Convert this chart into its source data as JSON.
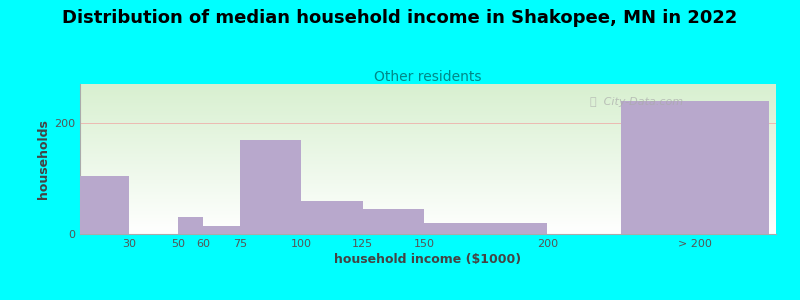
{
  "title": "Distribution of median household income in Shakopee, MN in 2022",
  "subtitle": "Other residents",
  "xlabel": "household income ($1000)",
  "ylabel": "households",
  "bar_color": "#b8a8cc",
  "background_color": "#00ffff",
  "ylim": [
    0,
    270
  ],
  "yticks": [
    0,
    200
  ],
  "xtick_vals": [
    30,
    50,
    60,
    75,
    100,
    125,
    150,
    200,
    260
  ],
  "xtick_labels": [
    "30",
    "50",
    "60",
    "75",
    "100",
    "125",
    "150",
    "200",
    "> 200"
  ],
  "bar_lefts": [
    10,
    30,
    50,
    60,
    75,
    100,
    125,
    150,
    230
  ],
  "bar_widths": [
    20,
    0,
    10,
    15,
    25,
    25,
    25,
    50,
    60
  ],
  "bar_heights": [
    105,
    0,
    30,
    15,
    170,
    60,
    45,
    20,
    240
  ],
  "xlim": [
    10,
    293
  ],
  "watermark": "City-Data.com",
  "title_fontsize": 13,
  "subtitle_fontsize": 10,
  "axis_label_fontsize": 9,
  "tick_fontsize": 8
}
